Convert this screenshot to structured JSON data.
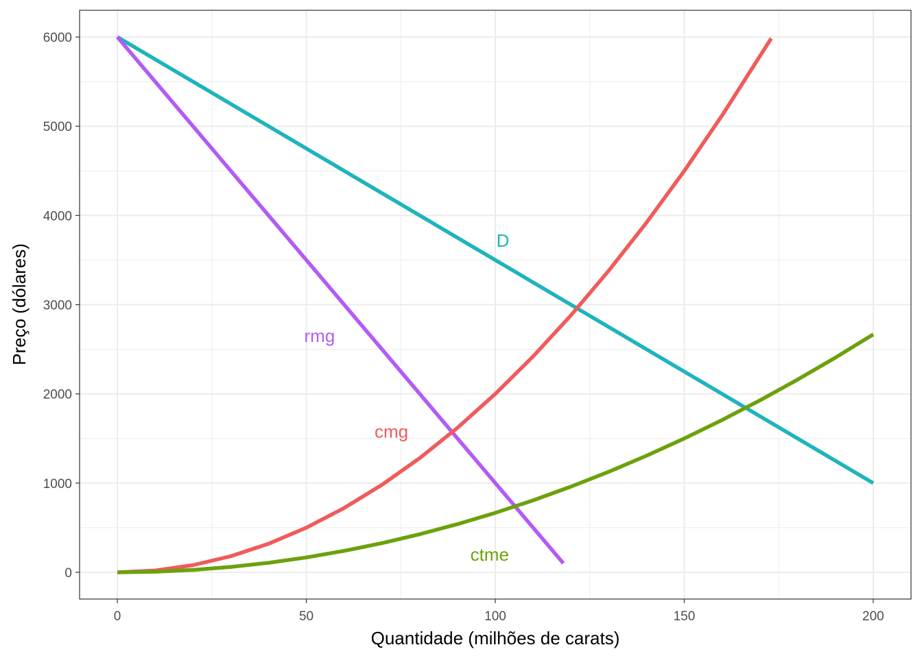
{
  "chart_data": {
    "type": "line",
    "xlabel": "Quantidade (milhões de carats)",
    "ylabel": "Preço (dólares)",
    "xlim": [
      -10,
      210
    ],
    "ylim": [
      -300,
      6300
    ],
    "x_ticks": [
      0,
      50,
      100,
      150,
      200
    ],
    "y_ticks": [
      0,
      1000,
      2000,
      3000,
      4000,
      5000,
      6000
    ],
    "grid": true,
    "legend": "none",
    "series": [
      {
        "name": "D",
        "color": "#1FB4BC",
        "x": [
          0,
          200
        ],
        "y": [
          6000,
          1000
        ],
        "label_at": [
          102,
          3720
        ]
      },
      {
        "name": "rmg",
        "color": "#B35BF5",
        "x": [
          0,
          118
        ],
        "y": [
          6000,
          100
        ],
        "label_at": [
          53.5,
          2650
        ]
      },
      {
        "name": "cmg",
        "color": "#F05B5B",
        "x": [
          0,
          10,
          20,
          30,
          40,
          50,
          60,
          70,
          80,
          90,
          100,
          110,
          120,
          130,
          140,
          150,
          160,
          173
        ],
        "y": [
          0,
          20,
          80,
          180,
          320,
          500,
          720,
          980,
          1280,
          1620,
          2000,
          2420,
          2880,
          3380,
          3920,
          4500,
          5120,
          5985
        ],
        "label_at": [
          72.5,
          1580
        ]
      },
      {
        "name": "ctme",
        "color": "#6CA10C",
        "x": [
          0,
          10,
          20,
          30,
          40,
          50,
          60,
          70,
          80,
          90,
          100,
          110,
          120,
          130,
          140,
          150,
          160,
          170,
          180,
          190,
          200
        ],
        "y": [
          0,
          6.7,
          26.7,
          60,
          106.7,
          166.7,
          240,
          326.7,
          426.7,
          540,
          666.7,
          806.7,
          960,
          1126.7,
          1306.7,
          1500,
          1706.7,
          1926.7,
          2160,
          2406.7,
          2666.7
        ],
        "label_at": [
          98.5,
          200
        ]
      }
    ]
  }
}
